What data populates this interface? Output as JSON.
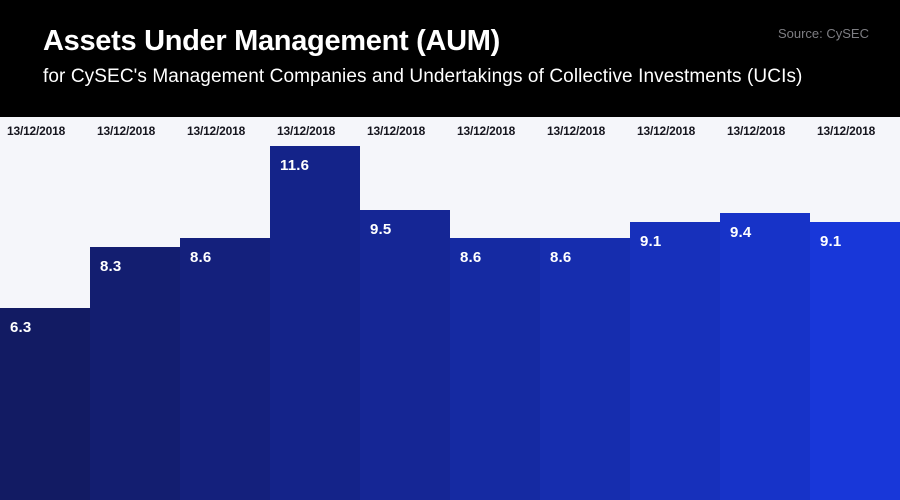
{
  "header": {
    "title": "Assets Under Management (AUM)",
    "subtitle": "for CySEC's Management Companies and Undertakings of Collective Investments (UCIs)",
    "source": "Source: CySEC"
  },
  "chart_data": {
    "type": "bar",
    "title": "Assets Under Management (AUM)",
    "subtitle": "for CySEC's Management Companies and Undertakings of Collective Investments (UCIs)",
    "source": "Source: CySEC",
    "categories": [
      "13/12/2018",
      "13/12/2018",
      "13/12/2018",
      "13/12/2018",
      "13/12/2018",
      "13/12/2018",
      "13/12/2018",
      "13/12/2018",
      "13/12/2018",
      "13/12/2018"
    ],
    "values": [
      6.3,
      8.3,
      8.6,
      11.6,
      9.5,
      8.6,
      8.6,
      9.1,
      9.4,
      9.1
    ],
    "xlabel": "",
    "ylabel": "",
    "ylim": [
      0,
      12.55
    ],
    "grid": false,
    "legend": false,
    "value_labels_inside_bars": true,
    "bar_colors": [
      "#121b63",
      "#131e70",
      "#14207c",
      "#142389",
      "#152695",
      "#152aa2",
      "#162dae",
      "#1730bb",
      "#1733c8",
      "#1837d9"
    ],
    "colors": {
      "header_background": "#000000",
      "title_text": "#ffffff",
      "source_text": "#7d7d82",
      "chart_background": "#f5f6fa",
      "category_label_text": "#16161e",
      "value_label_text": "#ffffff"
    }
  }
}
